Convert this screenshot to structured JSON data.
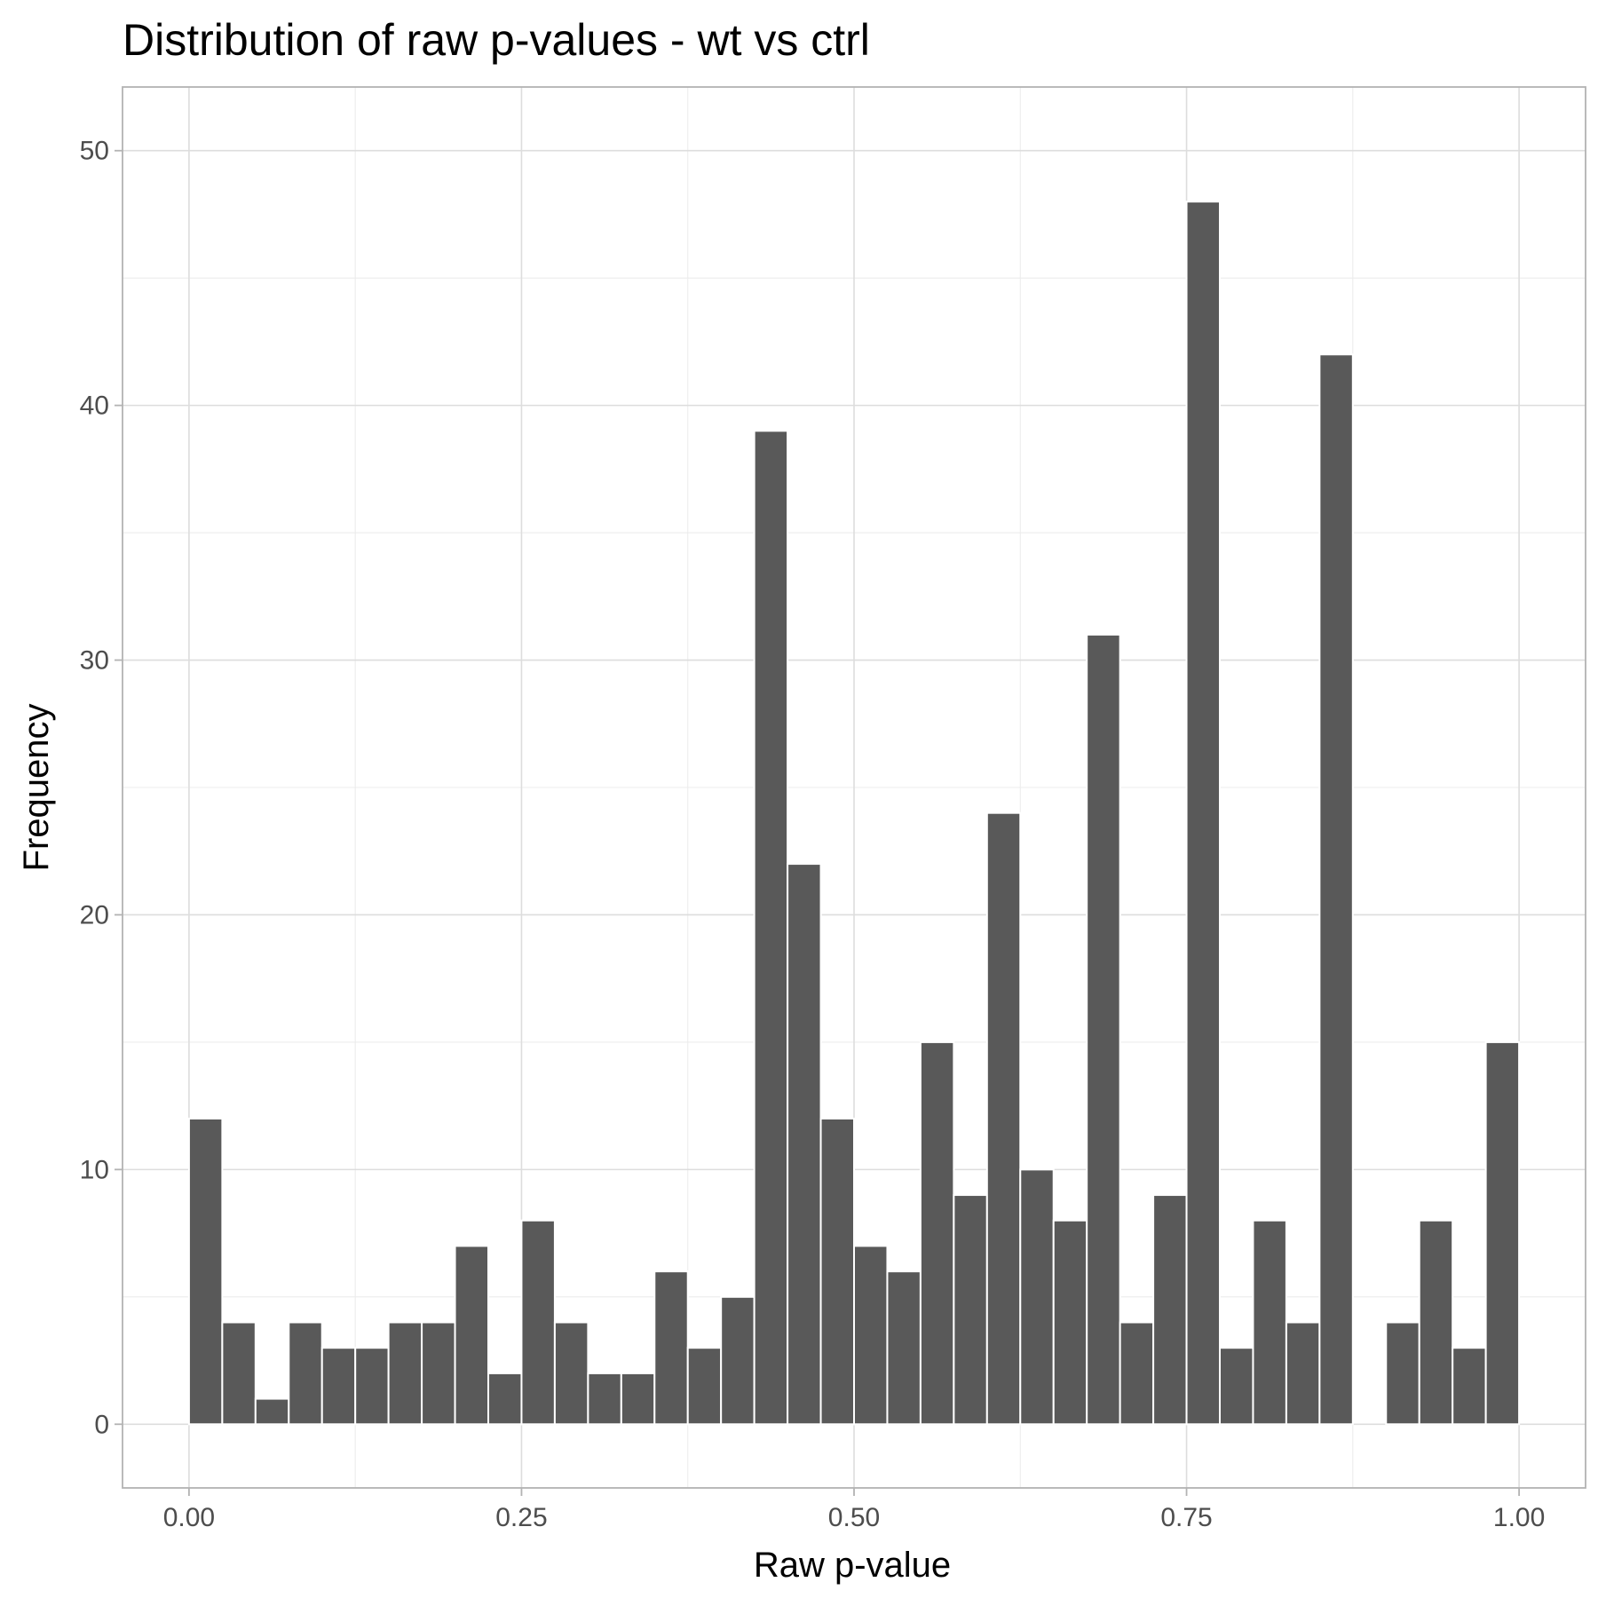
{
  "chart_data": {
    "type": "bar",
    "title": "Distribution of raw p-values - wt vs ctrl",
    "xlabel": "Raw p-value",
    "ylabel": "Frequency",
    "xlim": [
      -0.05,
      1.05
    ],
    "ylim": [
      0,
      50
    ],
    "x_ticks": [
      0.0,
      0.25,
      0.5,
      0.75,
      1.0
    ],
    "x_tick_labels": [
      "0.00",
      "0.25",
      "0.50",
      "0.75",
      "1.00"
    ],
    "y_ticks": [
      0,
      10,
      20,
      30,
      40,
      50
    ],
    "y_tick_labels": [
      "0",
      "10",
      "20",
      "30",
      "40",
      "50"
    ],
    "bin_width": 0.025,
    "bin_centers": [
      0.0125,
      0.0375,
      0.0625,
      0.0875,
      0.1125,
      0.1375,
      0.1625,
      0.1875,
      0.2125,
      0.2375,
      0.2625,
      0.2875,
      0.3125,
      0.3375,
      0.3625,
      0.3875,
      0.4125,
      0.4375,
      0.4625,
      0.4875,
      0.5125,
      0.5375,
      0.5625,
      0.5875,
      0.6125,
      0.6375,
      0.6625,
      0.6875,
      0.7125,
      0.7375,
      0.7625,
      0.7875,
      0.8125,
      0.8375,
      0.8625,
      0.8875,
      0.9125,
      0.9375,
      0.9625,
      0.9875
    ],
    "values": [
      12,
      4,
      1,
      4,
      3,
      3,
      4,
      4,
      7,
      2,
      8,
      4,
      2,
      2,
      6,
      3,
      5,
      39,
      22,
      12,
      7,
      6,
      15,
      9,
      24,
      10,
      8,
      31,
      4,
      9,
      48,
      3,
      8,
      4,
      42,
      0,
      4,
      8,
      3,
      15
    ],
    "bar_color": "#595959",
    "grid": true,
    "legend": "none"
  }
}
